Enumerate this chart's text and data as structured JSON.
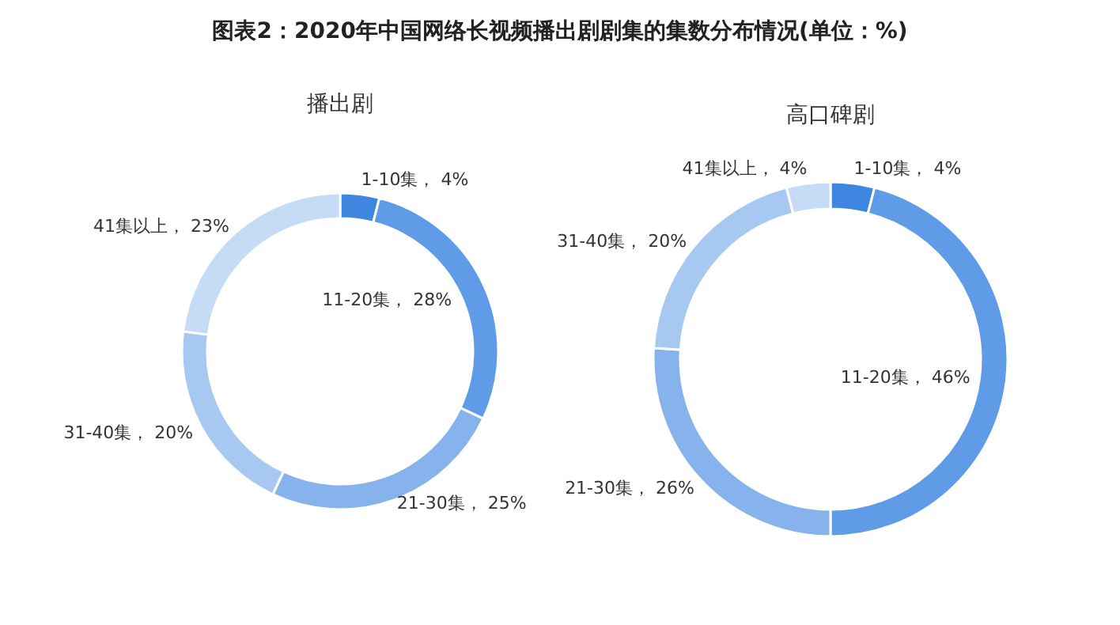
{
  "chart_data": [
    {
      "type": "donut",
      "title": "图表2：2020年中国网络长视频播出剧剧集的集数分布情况(单位：%)",
      "subtitle": "播出剧",
      "categories": [
        "1-10集",
        "11-20集",
        "21-30集",
        "31-40集",
        "41集以上"
      ],
      "values": [
        4,
        28,
        25,
        20,
        23
      ],
      "value_labels": [
        "4%",
        "28%",
        "25%",
        "20%",
        "23%"
      ],
      "colors": [
        "#3f86e0",
        "#5f9be6",
        "#86b3ec",
        "#a7c8f1",
        "#c6dcf6"
      ]
    },
    {
      "type": "donut",
      "subtitle": "高口碑剧",
      "categories": [
        "1-10集",
        "11-20集",
        "21-30集",
        "31-40集",
        "41集以上"
      ],
      "values": [
        4,
        46,
        26,
        20,
        4
      ],
      "value_labels": [
        "4%",
        "46%",
        "26%",
        "20%",
        "4%"
      ],
      "colors": [
        "#3f86e0",
        "#5f9be6",
        "#86b3ec",
        "#a7c8f1",
        "#c6dcf6"
      ]
    }
  ]
}
